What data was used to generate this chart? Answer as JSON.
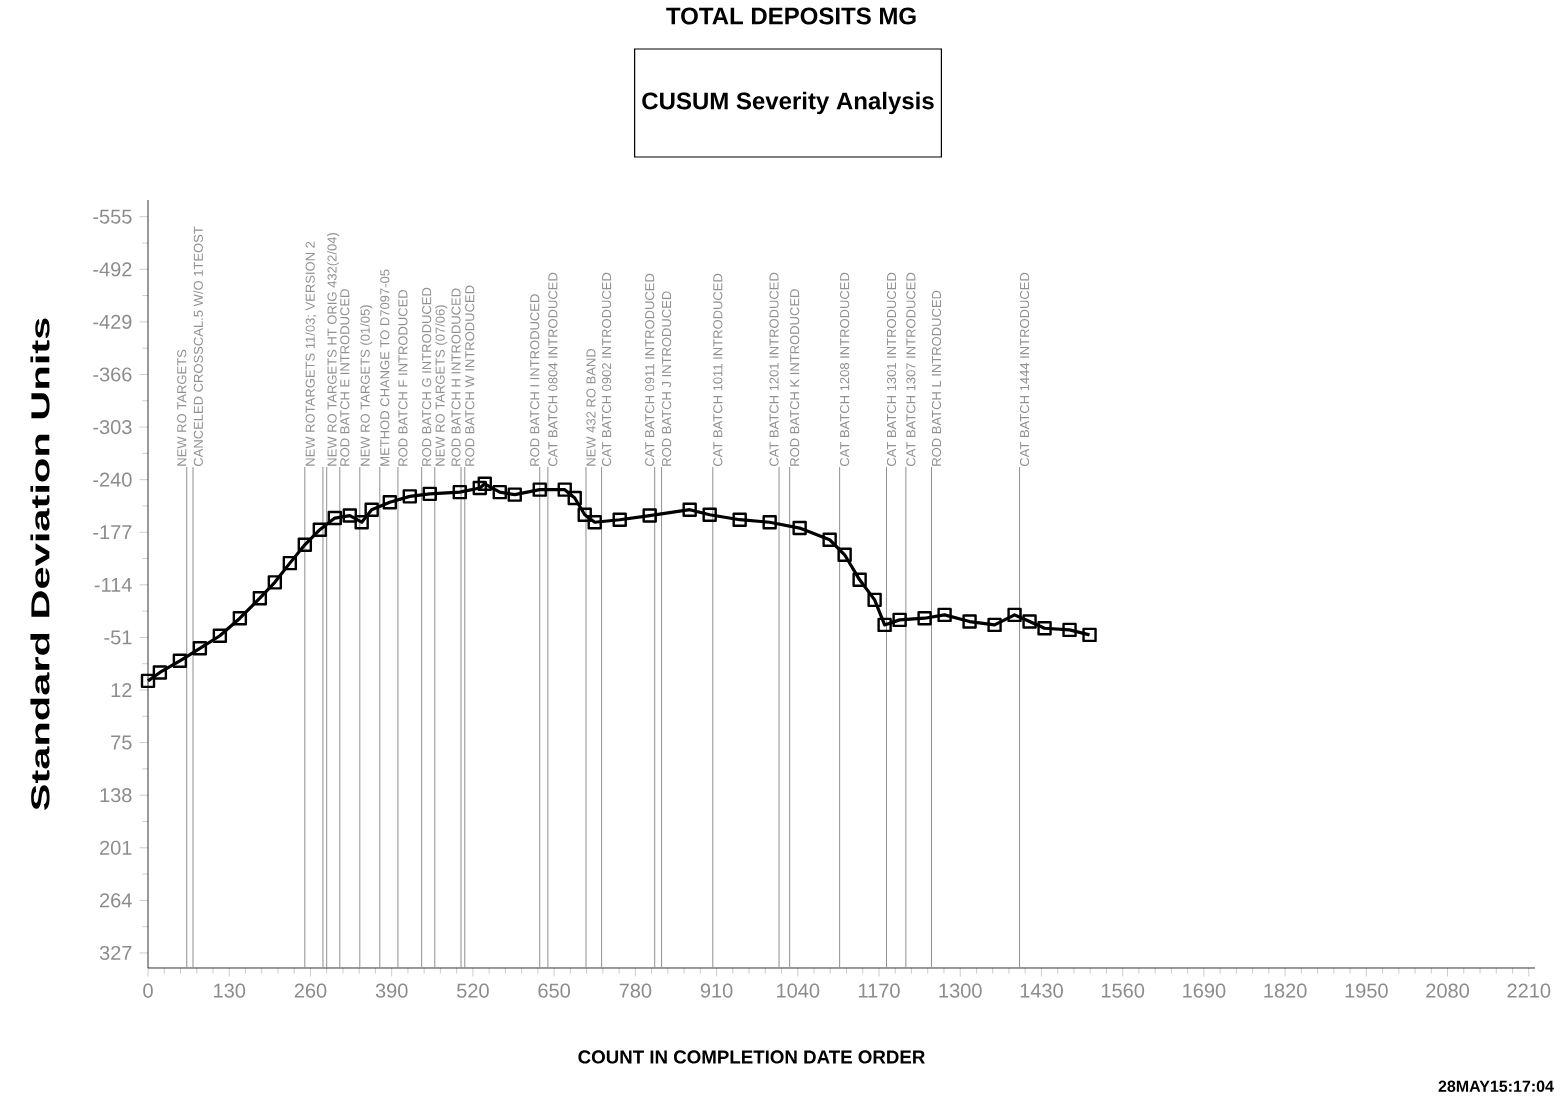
{
  "chart_data": {
    "type": "line",
    "title": "TOTAL DEPOSITS MG",
    "xlabel": "COUNT IN COMPLETION DATE ORDER",
    "ylabel": "Standard Deviation Units",
    "annotations": [
      "CUSUM Severity Analysis",
      "28MAY15:17:04"
    ],
    "x": [
      0,
      19,
      51,
      83,
      115,
      147,
      179,
      203,
      227,
      251,
      275,
      299,
      323,
      342,
      358,
      387,
      419,
      451,
      499,
      531,
      539,
      563,
      587,
      627,
      667,
      683,
      699,
      715,
      755,
      803,
      867,
      899,
      947,
      995,
      1043,
      1091,
      1115,
      1139,
      1163,
      1179,
      1203,
      1243,
      1275,
      1315,
      1355,
      1387,
      1411,
      1435,
      1475,
      1507
    ],
    "values": [
      1,
      -9,
      -23,
      -38,
      -53,
      -74,
      -98,
      -117,
      -140,
      -162,
      -180,
      -194,
      -197,
      -189,
      -204,
      -213,
      -220,
      -223,
      -225,
      -230,
      -235,
      -225,
      -222,
      -228,
      -228,
      -218,
      -198,
      -189,
      -192,
      -197,
      -204,
      -198,
      -192,
      -189,
      -182,
      -168,
      -150,
      -120,
      -96,
      -66,
      -72,
      -74,
      -78,
      -70,
      -66,
      -78,
      -70,
      -62,
      -60,
      -54
    ],
    "color": "#000000",
    "marker": "square",
    "line_style": "solid",
    "xlim": [
      0,
      2220
    ],
    "ylim": [
      345,
      -575
    ],
    "xticks": [
      0,
      130,
      260,
      390,
      520,
      650,
      780,
      910,
      1040,
      1170,
      1300,
      1430,
      1560,
      1690,
      1820,
      1950,
      2080,
      2210
    ],
    "yticks": [
      -555,
      -492,
      -429,
      -366,
      -303,
      -240,
      -177,
      -114,
      -51,
      12,
      75,
      138,
      201,
      264,
      327
    ],
    "ref_lines": [
      {
        "axis": "x",
        "value": 62,
        "label": "NEW RO TARGETS",
        "color": "#909090"
      },
      {
        "axis": "x",
        "value": 72,
        "label": "CANCELED CROSSCAL.5 W/O 1TEOST",
        "color": "#909090"
      },
      {
        "axis": "x",
        "value": 251,
        "label": "NEW ROTARGETS 11/03; VERSION 2",
        "color": "#909090"
      },
      {
        "axis": "x",
        "value": 280,
        "color": "#909090"
      },
      {
        "axis": "x",
        "value": 286,
        "label": "NEW RO TARGETS HT ORIG 432(2/04)",
        "color": "#909090"
      },
      {
        "axis": "x",
        "value": 307,
        "label": "ROD BATCH E INTRODUCED",
        "color": "#909090"
      },
      {
        "axis": "x",
        "value": 339,
        "label": "NEW RO TARGETS (01/05)",
        "color": "#909090"
      },
      {
        "axis": "x",
        "value": 371,
        "label": "METHOD CHANGE TO D7097-05",
        "color": "#909090"
      },
      {
        "axis": "x",
        "value": 400,
        "label": "ROD BATCH F INTRODUCED",
        "color": "#909090"
      },
      {
        "axis": "x",
        "value": 438,
        "label": "ROD BATCH G INTRODUCED",
        "color": "#909090"
      },
      {
        "axis": "x",
        "value": 459,
        "label": "NEW RO TARGETS (07/06)",
        "color": "#909090"
      },
      {
        "axis": "x",
        "value": 501,
        "label": "ROD BATCH H INTRODUCED",
        "color": "#909090"
      },
      {
        "axis": "x",
        "value": 507,
        "label": "ROD BATCH W INTRODUCED",
        "color": "#909090"
      },
      {
        "axis": "x",
        "value": 627,
        "label": "ROD BATCH I INTRODUCED",
        "color": "#909090"
      },
      {
        "axis": "x",
        "value": 640,
        "label": "CAT BATCH 0804 INTRODUCED",
        "color": "#909090"
      },
      {
        "axis": "x",
        "value": 701,
        "label": "NEW 432 RO BAND",
        "color": "#909090"
      },
      {
        "axis": "x",
        "value": 726,
        "label": "CAT BATCH 0902 INTRODUCED",
        "color": "#909090"
      },
      {
        "axis": "x",
        "value": 811,
        "label": "CAT BATCH 0911 INTRODUCED",
        "color": "#909090"
      },
      {
        "axis": "x",
        "value": 822,
        "label": "ROD BATCH J INTRODUCED",
        "color": "#909090"
      },
      {
        "axis": "x",
        "value": 904,
        "label": "CAT BATCH 1011 INTRODUCED",
        "color": "#909090"
      },
      {
        "axis": "x",
        "value": 1010,
        "label": "CAT BATCH 1201 INTRODUCED",
        "color": "#909090"
      },
      {
        "axis": "x",
        "value": 1027,
        "label": "ROD BATCH K INTRODUCED",
        "color": "#909090"
      },
      {
        "axis": "x",
        "value": 1107,
        "label": "CAT BATCH 1208 INTRODUCED",
        "color": "#909090"
      },
      {
        "axis": "x",
        "value": 1182,
        "label": "CAT BATCH 1301 INTRODUCED",
        "color": "#909090"
      },
      {
        "axis": "x",
        "value": 1213,
        "label": "CAT BATCH 1307 INTRODUCED",
        "color": "#909090"
      },
      {
        "axis": "x",
        "value": 1254,
        "label": "ROD BATCH L INTRODUCED",
        "color": "#909090"
      },
      {
        "axis": "x",
        "value": 1395,
        "label": "CAT BATCH 1444 INTRODUCED",
        "color": "#909090"
      }
    ]
  }
}
